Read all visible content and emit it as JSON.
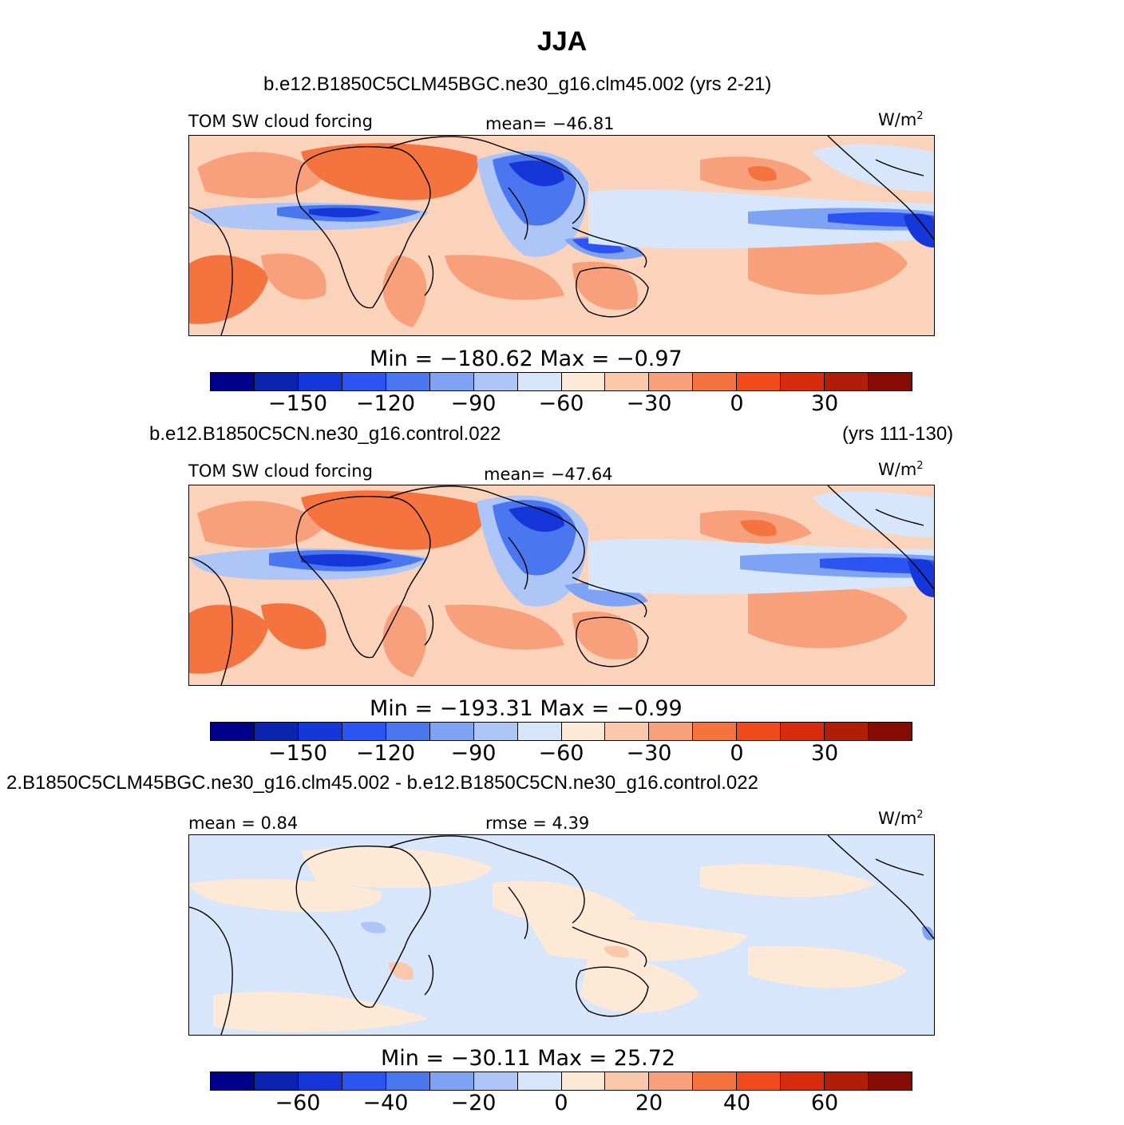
{
  "figure": {
    "season": "JJA",
    "case1_title": "b.e12.B1850C5CLM45BGC.ne30_g16.clm45.002 (yrs 2-21)",
    "case2_title_left": "b.e12.B1850C5CN.ne30_g16.control.022",
    "case2_title_right": "(yrs 111-130)",
    "diff_title": "2.B1850C5CLM45BGC.ne30_g16.clm45.002 - b.e12.B1850C5CN.ne30_g16.control.022"
  },
  "panels": [
    {
      "label_left": "TOM SW cloud forcing",
      "label_center": "mean= −46.81",
      "units": "W/m",
      "units_exp": "2",
      "min_max": "Min = −180.62 Max = −0.97",
      "ticks": [
        "−150",
        "−120",
        "−90",
        "−60",
        "−30",
        "0",
        "30"
      ]
    },
    {
      "label_left": "TOM SW cloud forcing",
      "label_center": "mean= −47.64",
      "units": "W/m",
      "units_exp": "2",
      "min_max": "Min = −193.31 Max = −0.99",
      "ticks": [
        "−150",
        "−120",
        "−90",
        "−60",
        "−30",
        "0",
        "30"
      ]
    },
    {
      "label_left": "mean = 0.84",
      "label_center": "rmse = 4.39",
      "units": "W/m",
      "units_exp": "2",
      "min_max": "Min = −30.11 Max = 25.72",
      "ticks": [
        "−60",
        "−40",
        "−20",
        "0",
        "20",
        "40",
        "60"
      ]
    }
  ],
  "colorbar": {
    "colors": [
      "#00008b",
      "#0b24b0",
      "#1536d8",
      "#2b54f2",
      "#4a76f0",
      "#7ea2f4",
      "#adc6f7",
      "#d7e6fb",
      "#fde9d6",
      "#fbc8ac",
      "#f8a07c",
      "#f5733f",
      "#f04a1d",
      "#d82a0c",
      "#b01d08",
      "#870b05"
    ]
  }
}
